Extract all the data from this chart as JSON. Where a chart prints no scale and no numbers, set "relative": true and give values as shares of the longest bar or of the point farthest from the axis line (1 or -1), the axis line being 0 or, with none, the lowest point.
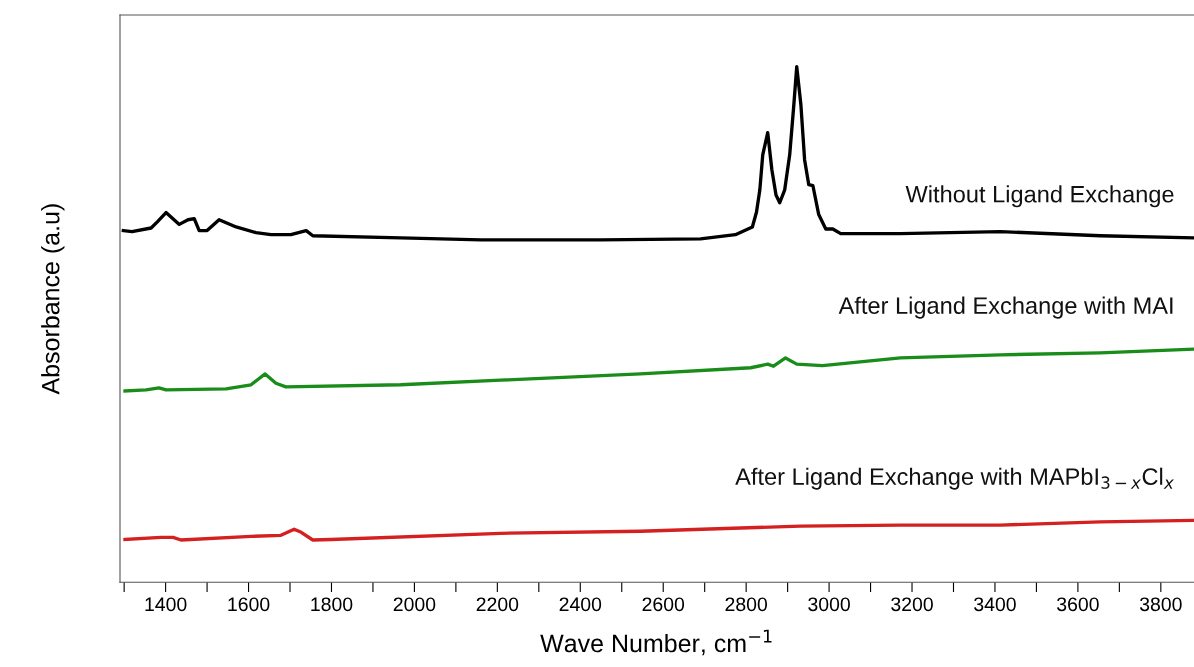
{
  "chart_data": {
    "type": "line",
    "relative": true,
    "xlabel": "Wave Number, cm$^{−1}$",
    "ylabel": "Absorbance (a.u)",
    "xlim": [
      1290,
      3880
    ],
    "xticks": [
      {
        "value": 1300,
        "label": null
      },
      1400,
      {
        "value": 1500,
        "label": null
      },
      1600,
      {
        "value": 1700,
        "label": null
      },
      1800,
      {
        "value": 1900,
        "label": null
      },
      2000,
      {
        "value": 2100,
        "label": null
      },
      2200,
      {
        "value": 2300,
        "label": null
      },
      2400,
      {
        "value": 2500,
        "label": null
      },
      2600,
      {
        "value": 2700,
        "label": null
      },
      2800,
      {
        "value": 2900,
        "label": null
      },
      3000,
      {
        "value": 3100,
        "label": null
      },
      3200,
      {
        "value": 3300,
        "label": null
      },
      3400,
      {
        "value": 3500,
        "label": null
      },
      3600,
      {
        "value": 3700,
        "label": null
      },
      3800
    ],
    "tick_labels": "x",
    "grid": false,
    "legend": false,
    "marker": "none",
    "line_style": "solid",
    "series": [
      {
        "name": "Without Ligand Exchange",
        "color": "#000000",
        "x": [
          1298,
          1319,
          1365,
          1380,
          1401,
          1433,
          1454,
          1469,
          1481,
          1500,
          1529,
          1570,
          1618,
          1654,
          1702,
          1739,
          1755,
          1967,
          2160,
          2449,
          2690,
          2774,
          2815,
          2825,
          2833,
          2840,
          2852,
          2862,
          2872,
          2881,
          2893,
          2905,
          2915,
          2922,
          2932,
          2941,
          2951,
          2961,
          2975,
          2992,
          3009,
          3028,
          3172,
          3413,
          3654,
          3880
        ],
        "values": [
          0.682,
          0.68,
          0.687,
          0.699,
          0.717,
          0.694,
          0.703,
          0.705,
          0.682,
          0.682,
          0.703,
          0.689,
          0.678,
          0.674,
          0.674,
          0.682,
          0.672,
          0.668,
          0.664,
          0.664,
          0.666,
          0.674,
          0.689,
          0.718,
          0.761,
          0.829,
          0.872,
          0.8,
          0.751,
          0.736,
          0.761,
          0.829,
          0.926,
          1.0,
          0.926,
          0.819,
          0.771,
          0.769,
          0.713,
          0.685,
          0.685,
          0.676,
          0.676,
          0.68,
          0.672,
          0.668
        ]
      },
      {
        "name": "After Ligand Exchange with MAI",
        "color": "#1a8c1a",
        "x": [
          1302,
          1353,
          1384,
          1401,
          1546,
          1606,
          1640,
          1666,
          1690,
          1967,
          2208,
          2545,
          2811,
          2852,
          2866,
          2895,
          2922,
          2984,
          3172,
          3413,
          3654,
          3880
        ],
        "values": [
          0.371,
          0.373,
          0.377,
          0.373,
          0.375,
          0.383,
          0.404,
          0.386,
          0.379,
          0.383,
          0.392,
          0.404,
          0.416,
          0.423,
          0.419,
          0.435,
          0.423,
          0.42,
          0.435,
          0.441,
          0.445,
          0.452
        ]
      },
      {
        "name": "After Ligand Exchange with MAPbI$_{3−x}$Cl$_{x}$",
        "color": "#d42020",
        "x": [
          1302,
          1389,
          1418,
          1437,
          1606,
          1678,
          1710,
          1727,
          1755,
          1799,
          2208,
          2545,
          2931,
          3172,
          3413,
          3654,
          3880
        ],
        "values": [
          0.083,
          0.087,
          0.087,
          0.082,
          0.089,
          0.091,
          0.103,
          0.097,
          0.082,
          0.083,
          0.095,
          0.099,
          0.109,
          0.111,
          0.111,
          0.117,
          0.12
        ]
      }
    ]
  }
}
